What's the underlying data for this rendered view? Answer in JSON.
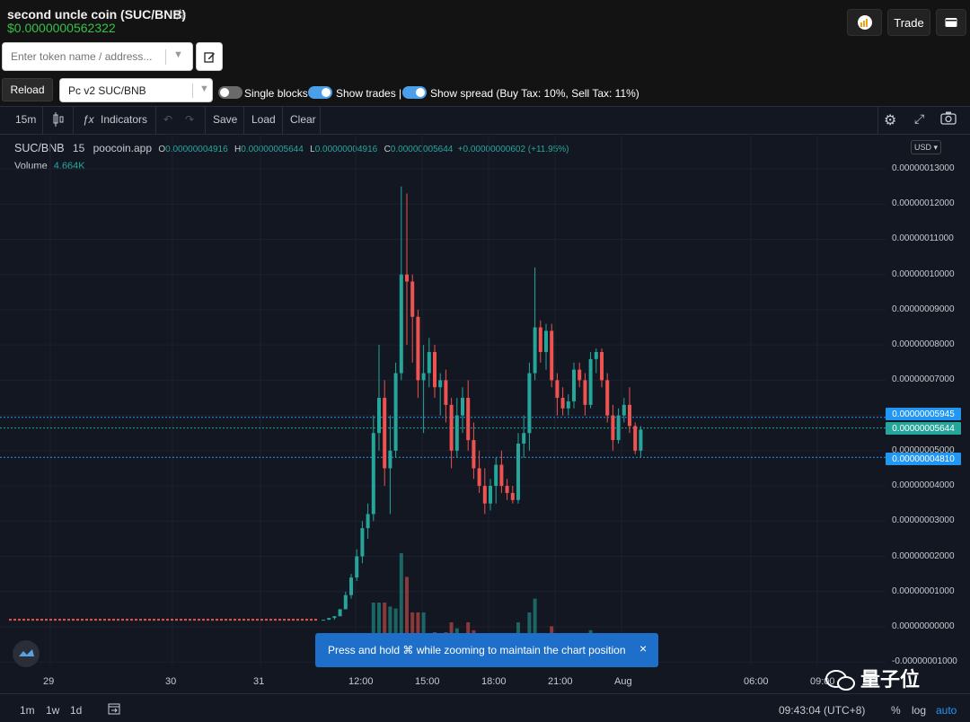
{
  "header": {
    "coin_title": "second uncle coin (SUC/BNB)",
    "star_icon": "star-outline-icon",
    "price": "$0.0000000562322",
    "trade_label": "Trade"
  },
  "controls": {
    "token_placeholder": "Enter token name / address...",
    "reload_label": "Reload",
    "pair_selected": "Pc v2 SUC/BNB",
    "single_blocks_label": "Single blocks",
    "single_blocks_on": false,
    "show_trades_label": "Show trades |",
    "show_trades_on": true,
    "show_spread_label": "Show spread (Buy Tax: 10%, Sell Tax: 11%)",
    "show_spread_on": true
  },
  "toolbar": {
    "interval": "15m",
    "indicators_label": "Indicators",
    "save_label": "Save",
    "load_label": "Load",
    "clear_label": "Clear"
  },
  "legend": {
    "symbol": "SUC/BNB",
    "interval": "15",
    "source": "poocoin.app",
    "o_label": "O",
    "o_value": "0.00000004916",
    "h_label": "H",
    "h_value": "0.00000005644",
    "l_label": "L",
    "l_value": "0.00000004916",
    "c_label": "C",
    "c_value": "0.00000005644",
    "change": "+0.00000000602 (+11.95%)",
    "volume_label": "Volume",
    "volume_value": "4.664K"
  },
  "currency": "USD",
  "colors": {
    "up": "#26a69a",
    "down": "#ef5350",
    "price_green": "#35c04a",
    "toggle_on": "#4a9fe8",
    "blue_tag": "#2196f3"
  },
  "price_tags": {
    "spread_high": "0.00000005945",
    "last": "0.00000005644",
    "spread_low": "0.00000004810"
  },
  "bottom": {
    "ranges": [
      "1m",
      "1w",
      "1d"
    ],
    "time": "09:43:04 (UTC+8)",
    "percent_label": "%",
    "log_label": "log",
    "auto_label": "auto"
  },
  "toast": {
    "text": "Press and hold ⌘ while zooming to maintain the chart position",
    "close": "×"
  },
  "watermark": "量子位",
  "chart_data": {
    "type": "candlestick",
    "title": "",
    "y_tick_labels": [
      "0.00000013000",
      "0.00000012000",
      "0.00000011000",
      "0.00000010000",
      "0.00000009000",
      "0.00000008000",
      "0.00000007000",
      "0.00000006000",
      "0.00000005000",
      "0.00000004000",
      "0.00000003000",
      "0.00000002000",
      "0.00000001000",
      "0.00000000000",
      "-0.00000001000"
    ],
    "x_tick_labels": [
      "29",
      "30",
      "31",
      "12:00",
      "15:00",
      "18:00",
      "21:00",
      "Aug",
      "06:00",
      "09:00"
    ],
    "ylim": [
      -1e-08,
      1.3e-07
    ],
    "unit_scale": 1e-08,
    "candles_ohlc_e8": [
      [
        0.2,
        0.2,
        0.2,
        0.2
      ],
      [
        0.2,
        0.25,
        0.2,
        0.25
      ],
      [
        0.25,
        0.3,
        0.2,
        0.3
      ],
      [
        0.3,
        0.5,
        0.3,
        0.5
      ],
      [
        0.5,
        1.0,
        0.5,
        0.9
      ],
      [
        0.9,
        1.5,
        0.8,
        1.4
      ],
      [
        1.4,
        2.2,
        1.3,
        2.0
      ],
      [
        2.0,
        3.0,
        1.8,
        2.8
      ],
      [
        2.8,
        3.5,
        2.5,
        3.2
      ],
      [
        3.2,
        6.0,
        3.0,
        5.5
      ],
      [
        5.5,
        8.0,
        5.0,
        6.5
      ],
      [
        6.5,
        7.0,
        4.0,
        4.5
      ],
      [
        4.5,
        6.0,
        3.2,
        5.0
      ],
      [
        5.0,
        7.5,
        4.8,
        7.2
      ],
      [
        7.2,
        12.5,
        7.0,
        10.0
      ],
      [
        10.0,
        12.3,
        8.0,
        9.8
      ],
      [
        9.8,
        10.0,
        7.5,
        8.8
      ],
      [
        8.8,
        9.0,
        6.5,
        7.0
      ],
      [
        7.0,
        8.0,
        5.5,
        7.2
      ],
      [
        7.2,
        8.2,
        6.8,
        7.8
      ],
      [
        7.8,
        8.0,
        6.5,
        6.8
      ],
      [
        6.8,
        7.2,
        6.0,
        7.0
      ],
      [
        7.0,
        7.3,
        5.8,
        6.3
      ],
      [
        6.3,
        6.5,
        4.5,
        5.0
      ],
      [
        5.0,
        6.5,
        4.8,
        6.0
      ],
      [
        6.0,
        6.8,
        5.5,
        6.5
      ],
      [
        6.5,
        7.0,
        5.0,
        5.3
      ],
      [
        5.3,
        5.8,
        4.2,
        4.5
      ],
      [
        4.5,
        5.0,
        3.8,
        4.0
      ],
      [
        4.0,
        4.5,
        3.2,
        3.5
      ],
      [
        3.5,
        4.2,
        3.3,
        4.0
      ],
      [
        4.0,
        4.8,
        3.5,
        4.6
      ],
      [
        4.6,
        5.0,
        3.8,
        4.0
      ],
      [
        4.0,
        4.2,
        3.6,
        3.8
      ],
      [
        3.8,
        4.0,
        3.5,
        3.6
      ],
      [
        3.6,
        5.5,
        3.5,
        5.2
      ],
      [
        5.2,
        6.0,
        4.8,
        5.5
      ],
      [
        5.5,
        7.5,
        5.0,
        7.2
      ],
      [
        7.2,
        10.2,
        7.0,
        8.5
      ],
      [
        8.5,
        8.7,
        7.5,
        7.8
      ],
      [
        7.8,
        8.6,
        7.3,
        8.4
      ],
      [
        8.4,
        8.6,
        6.8,
        7.0
      ],
      [
        7.0,
        7.2,
        6.0,
        6.5
      ],
      [
        6.5,
        6.8,
        6.0,
        6.2
      ],
      [
        6.2,
        6.6,
        6.0,
        6.4
      ],
      [
        6.4,
        7.5,
        6.2,
        7.3
      ],
      [
        7.3,
        7.5,
        6.8,
        7.0
      ],
      [
        7.0,
        7.2,
        6.0,
        6.3
      ],
      [
        6.3,
        7.8,
        6.2,
        7.6
      ],
      [
        7.6,
        7.9,
        7.2,
        7.8
      ],
      [
        7.8,
        7.9,
        6.8,
        7.0
      ],
      [
        7.0,
        7.2,
        5.8,
        6.0
      ],
      [
        6.0,
        6.3,
        5.0,
        5.3
      ],
      [
        5.3,
        6.2,
        5.2,
        6.0
      ],
      [
        6.0,
        6.5,
        5.8,
        6.3
      ],
      [
        6.3,
        6.8,
        5.5,
        5.7
      ],
      [
        5.7,
        5.8,
        4.9,
        5.0
      ],
      [
        5.0,
        5.7,
        4.8,
        5.6
      ]
    ]
  }
}
